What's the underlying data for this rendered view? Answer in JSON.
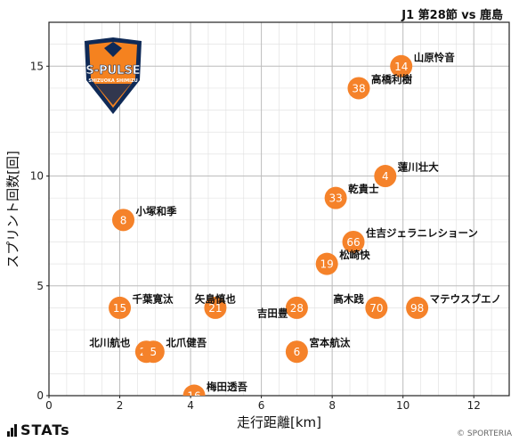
{
  "header": {
    "match_title": "J1 第28節 vs 鹿島"
  },
  "footer": {
    "brand": "STATs",
    "credit": "© SPORTERIA"
  },
  "badge": {
    "text": "S-PULSE",
    "subtext": "SHIZUOKA SHIMIZU",
    "colors": {
      "orange": "#F5821F",
      "navy": "#0F2A57"
    }
  },
  "colors": {
    "marker": "#F5822A",
    "marker_text": "#ffffff",
    "grid_major": "#bdbdbd",
    "grid_minor": "#e3e3e3"
  },
  "chart_data": {
    "type": "scatter",
    "title": "",
    "xlabel": "走行距離[km]",
    "ylabel": "スプリント回数[回]",
    "xlim": [
      0,
      13
    ],
    "ylim": [
      0,
      17
    ],
    "xticks": [
      0,
      2,
      4,
      6,
      8,
      10,
      12
    ],
    "yticks": [
      0,
      5,
      10,
      15
    ],
    "grid": true,
    "points": [
      {
        "number": "14",
        "name": "山原怜音",
        "x": 9.95,
        "y": 15
      },
      {
        "number": "38",
        "name": "高橋利樹",
        "x": 8.75,
        "y": 14
      },
      {
        "number": "4",
        "name": "蓮川壮大",
        "x": 9.5,
        "y": 10
      },
      {
        "number": "33",
        "name": "乾貴士",
        "x": 8.1,
        "y": 9
      },
      {
        "number": "8",
        "name": "小塚和季",
        "x": 2.1,
        "y": 8
      },
      {
        "number": "66",
        "name": "住吉ジェラニレショーン",
        "x": 8.6,
        "y": 7
      },
      {
        "number": "19",
        "name": "松崎快",
        "x": 7.85,
        "y": 6
      },
      {
        "number": "15",
        "name": "千葉寛汰",
        "x": 2.0,
        "y": 4
      },
      {
        "number": "21",
        "name": "矢島慎也",
        "x": 4.7,
        "y": 4
      },
      {
        "number": "28",
        "name": "吉田豊",
        "x": 7.0,
        "y": 4
      },
      {
        "number": "70",
        "name": "高木践",
        "x": 9.25,
        "y": 4
      },
      {
        "number": "98",
        "name": "マテウスブエノ",
        "x": 10.4,
        "y": 4
      },
      {
        "number": "23",
        "name": "北川航也",
        "x": 2.75,
        "y": 2
      },
      {
        "number": "5",
        "name": "北爪健吾",
        "x": 2.95,
        "y": 2
      },
      {
        "number": "6",
        "name": "宮本航汰",
        "x": 7.0,
        "y": 2
      },
      {
        "number": "16",
        "name": "梅田透吾",
        "x": 4.1,
        "y": 0
      }
    ]
  }
}
